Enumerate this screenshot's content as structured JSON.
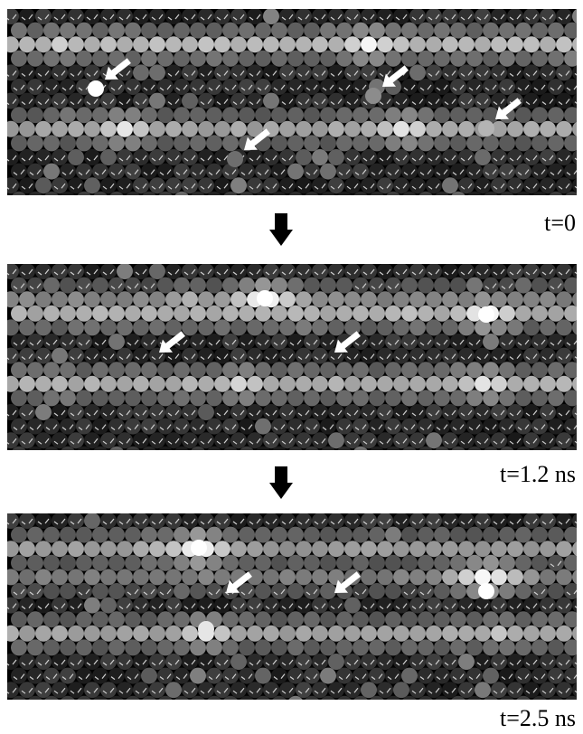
{
  "panels": [
    {
      "label": "t=0"
    },
    {
      "label": "t=1.2 ns"
    },
    {
      "label": "t=2.5 ns"
    }
  ],
  "colors": {
    "background": "#ffffff",
    "lattice_dark": "#1a1a1a",
    "lattice_bright": "#ffffff",
    "arrow": "#ffffff",
    "transition_arrow": "#000000"
  },
  "icons": {
    "transition": "down-arrow-icon",
    "marker": "white-arrow-icon"
  }
}
